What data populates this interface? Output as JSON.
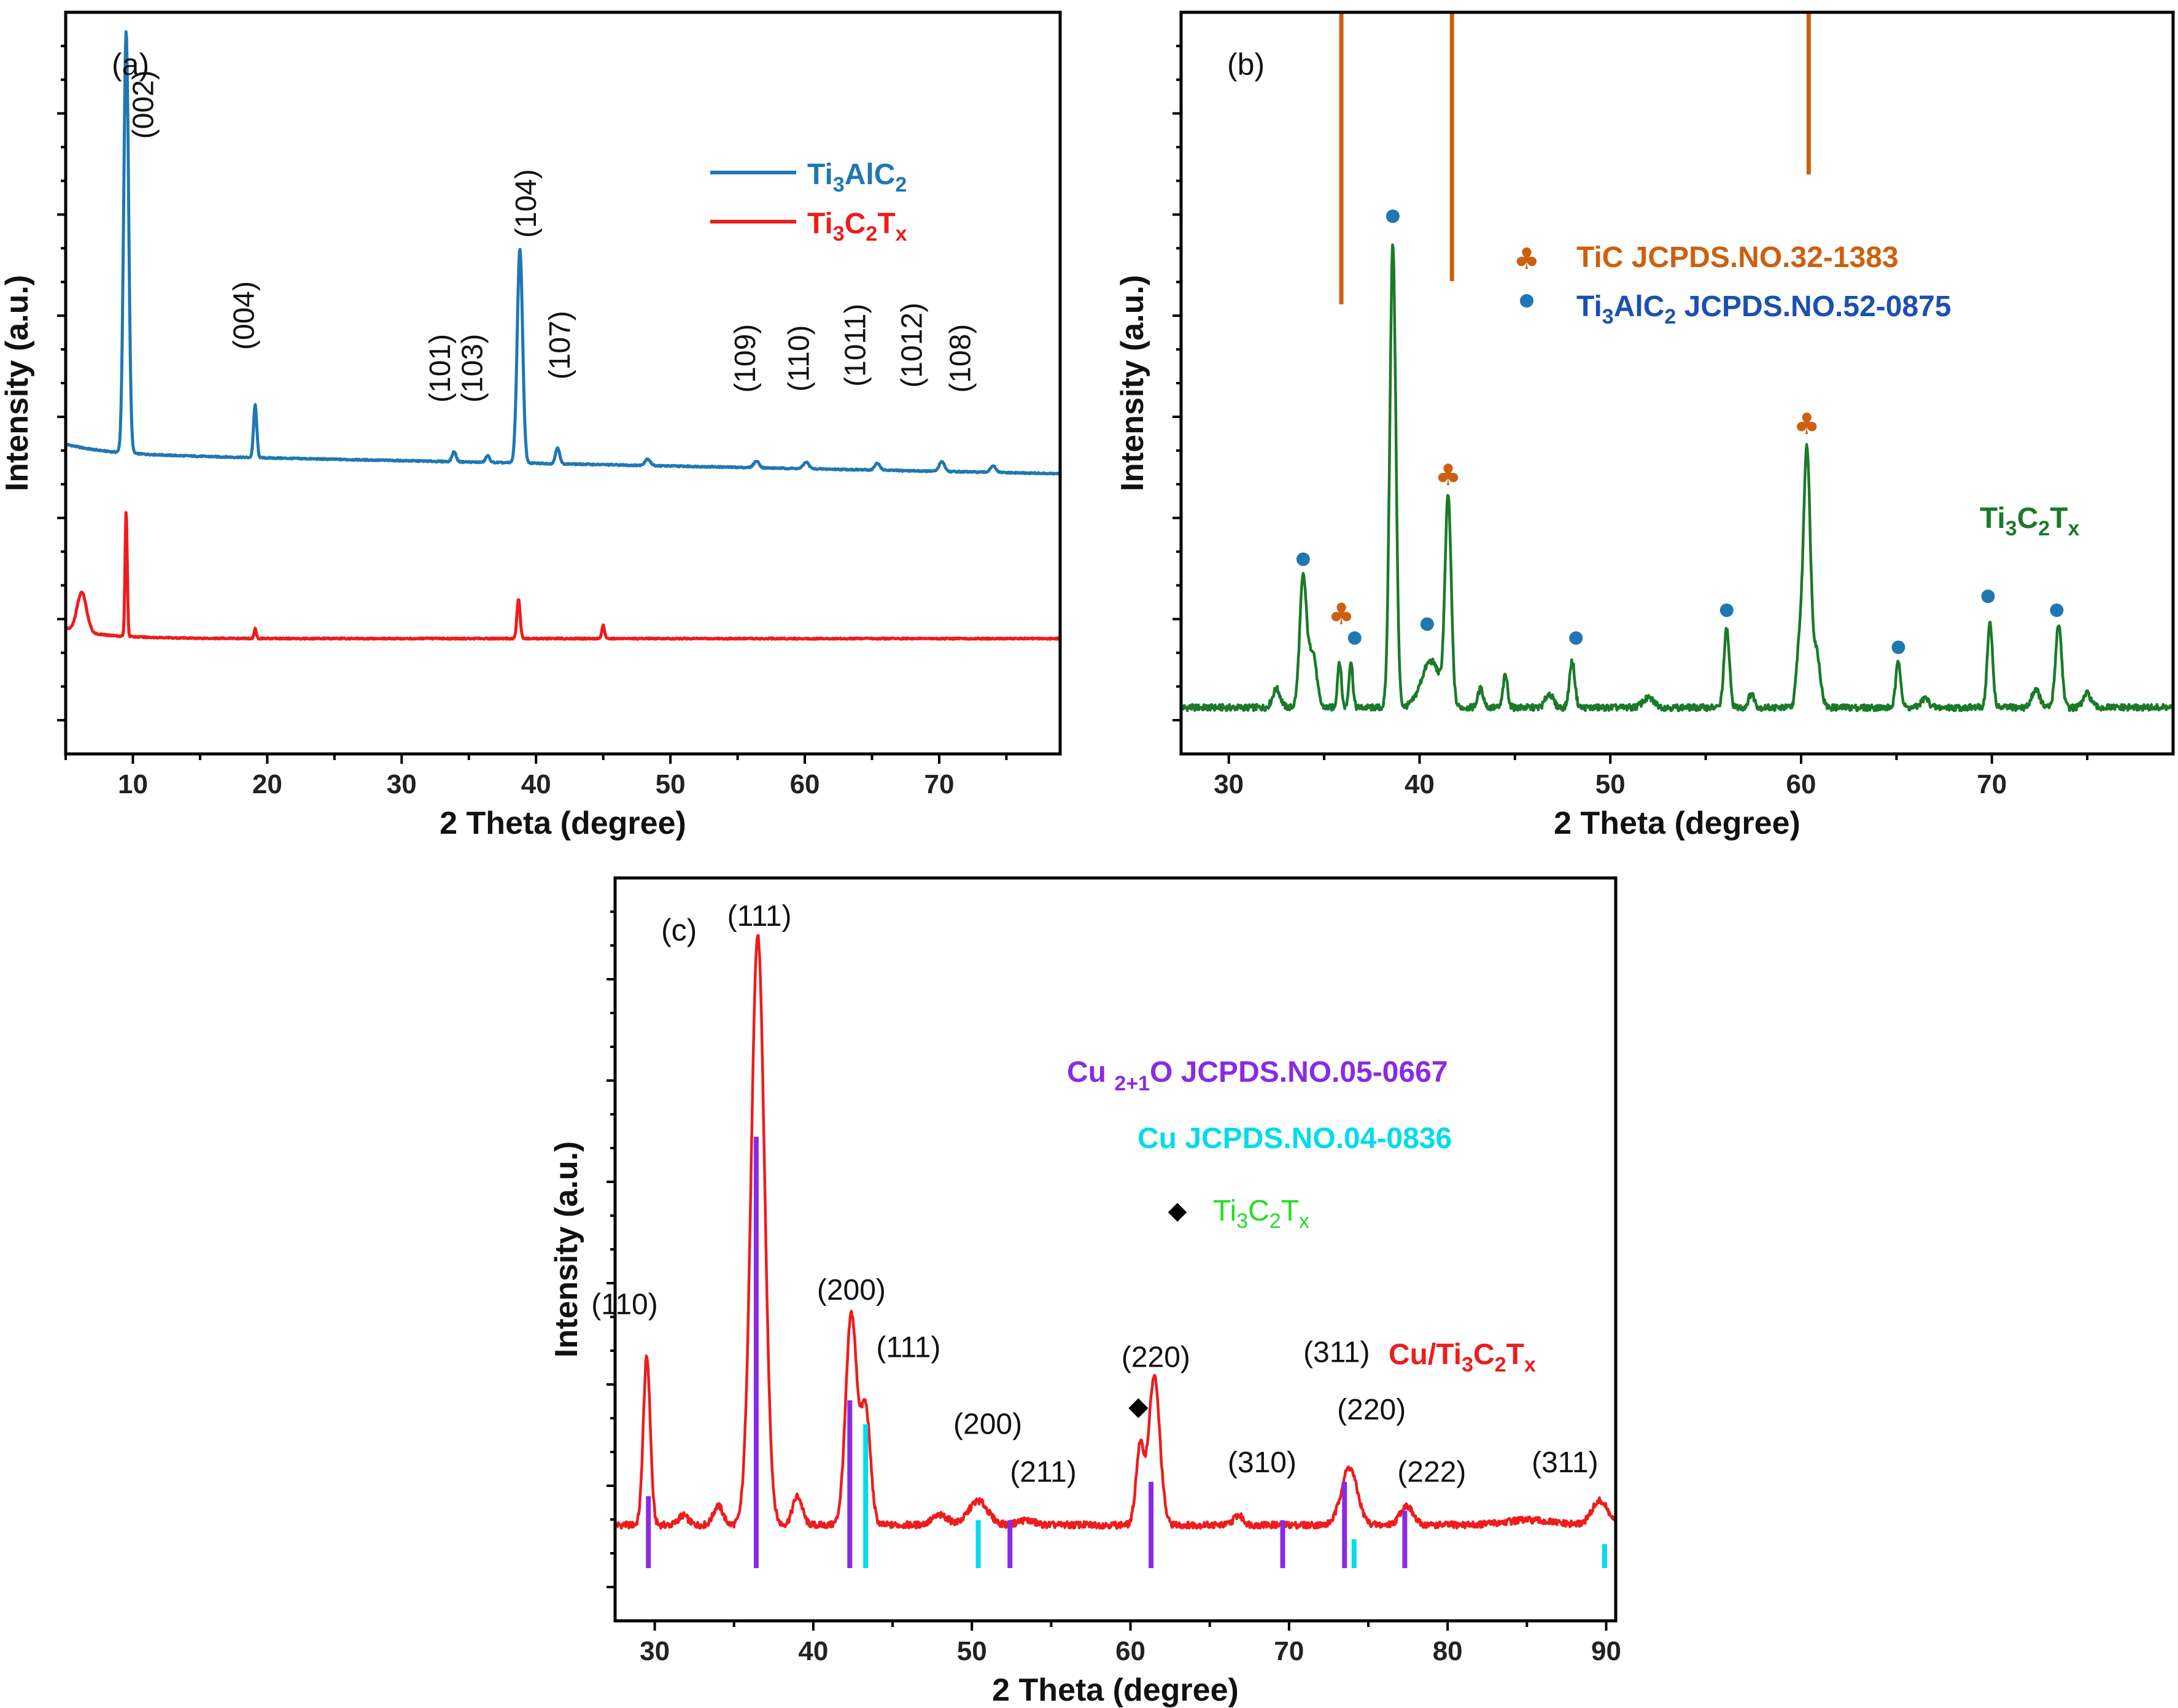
{
  "chart_data": [
    {
      "panel": "(a)",
      "type": "line",
      "xlabel": "2 Theta (degree)",
      "ylabel": "Intensity (a.u.)",
      "xlim": [
        5,
        79
      ],
      "xticks": [
        10,
        20,
        30,
        40,
        50,
        60,
        70
      ],
      "ylim": [
        -0.35,
        1.9
      ],
      "legend": {
        "placement": "top-right",
        "entries": [
          {
            "label": "Ti3AlC2",
            "base": "Ti",
            "sub1": "3",
            "mid": "AlC",
            "sub2": "2",
            "color": "#1f77b4"
          },
          {
            "label": "Ti3C2Tx",
            "base": "Ti",
            "sub1": "3",
            "mid": "C",
            "sub2": "2",
            "tail": "T",
            "sub3": "x",
            "color": "#ee1c1c"
          }
        ]
      },
      "series": [
        {
          "name": "Ti3AlC2",
          "color": "#1f77b4",
          "baseline_start": 0.56,
          "baseline_end": 0.5,
          "peaks": [
            [
              9.5,
              1.28,
              0.18
            ],
            [
              19.1,
              0.16,
              0.12
            ],
            [
              33.9,
              0.03,
              0.15
            ],
            [
              36.4,
              0.02,
              0.15
            ],
            [
              38.8,
              0.65,
              0.2
            ],
            [
              41.6,
              0.05,
              0.15
            ],
            [
              48.3,
              0.02,
              0.2
            ],
            [
              56.4,
              0.02,
              0.2
            ],
            [
              60.1,
              0.02,
              0.2
            ],
            [
              65.4,
              0.02,
              0.2
            ],
            [
              70.2,
              0.03,
              0.2
            ],
            [
              74.0,
              0.02,
              0.2
            ]
          ]
        },
        {
          "name": "Ti3C2Tx",
          "color": "#ee1c1c",
          "baseline_start": 0.0,
          "baseline_end": 0.0,
          "peaks": [
            [
              6.2,
              0.12,
              0.35
            ],
            [
              9.5,
              0.38,
              0.08
            ],
            [
              19.1,
              0.03,
              0.08
            ],
            [
              38.7,
              0.12,
              0.12
            ],
            [
              45.0,
              0.04,
              0.1
            ]
          ]
        }
      ],
      "annotations": [
        {
          "text": "(002)",
          "x": 11.5,
          "y": 1.62
        },
        {
          "text": "(004)",
          "x": 19.0,
          "y": 0.98
        },
        {
          "text": "(101)",
          "x": 33.6,
          "y": 0.82
        },
        {
          "text": "(103)",
          "x": 36.0,
          "y": 0.82
        },
        {
          "text": "(104)",
          "x": 40.0,
          "y": 1.32
        },
        {
          "text": "(107)",
          "x": 42.5,
          "y": 0.89
        },
        {
          "text": "(109)",
          "x": 56.3,
          "y": 0.85
        },
        {
          "text": "(110)",
          "x": 60.3,
          "y": 0.85
        },
        {
          "text": "(1011)",
          "x": 64.5,
          "y": 0.89
        },
        {
          "text": "(1012)",
          "x": 68.7,
          "y": 0.89
        },
        {
          "text": "(108)",
          "x": 72.3,
          "y": 0.85
        }
      ]
    },
    {
      "panel": "(b)",
      "type": "line",
      "xlabel": "2 Theta (degree)",
      "ylabel": "Intensity (a.u.)",
      "xlim": [
        27.5,
        79.5
      ],
      "xticks": [
        30,
        40,
        50,
        60,
        70
      ],
      "ylim": [
        -0.1,
        1.5
      ],
      "series_label": {
        "base": "Ti",
        "sub1": "3",
        "mid": "C",
        "sub2": "2",
        "tail": "T",
        "sub3": "x",
        "color": "#1a7a28"
      },
      "legend": {
        "placement": "upper-right",
        "entries": [
          {
            "symbol": "club",
            "label": "TiC JCPDS.NO.32-1383",
            "color": "#cc6010"
          },
          {
            "symbol": "dot",
            "label": "Ti3AlC2 JCPDS.NO.52-0875",
            "formula_base": "Ti",
            "formula_sub1": "3",
            "formula_mid": "AlC",
            "formula_sub2": "2",
            "ref": " JCPDS.NO.52-0875",
            "color": "#1a50b0",
            "dot_color": "#1f77b4"
          }
        ]
      },
      "series": [
        {
          "name": "Ti3C2Tx",
          "color": "#1a7a28",
          "baseline": 0.0,
          "peaks": [
            [
              32.5,
              0.04,
              0.2
            ],
            [
              33.9,
              0.28,
              0.18
            ],
            [
              34.4,
              0.12,
              0.2
            ],
            [
              35.8,
              0.1,
              0.1
            ],
            [
              36.4,
              0.1,
              0.1
            ],
            [
              38.6,
              1.0,
              0.16
            ],
            [
              40.6,
              0.1,
              0.5
            ],
            [
              41.5,
              0.44,
              0.16
            ],
            [
              43.2,
              0.04,
              0.15
            ],
            [
              44.5,
              0.07,
              0.12
            ],
            [
              46.8,
              0.03,
              0.2
            ],
            [
              48.0,
              0.1,
              0.14
            ],
            [
              52.0,
              0.02,
              0.3
            ],
            [
              56.1,
              0.17,
              0.14
            ],
            [
              57.4,
              0.03,
              0.15
            ],
            [
              59.9,
              0.12,
              0.15
            ],
            [
              60.3,
              0.56,
              0.18
            ],
            [
              60.8,
              0.12,
              0.2
            ],
            [
              65.1,
              0.1,
              0.13
            ],
            [
              66.5,
              0.02,
              0.2
            ],
            [
              69.9,
              0.18,
              0.14
            ],
            [
              72.3,
              0.04,
              0.2
            ],
            [
              73.5,
              0.18,
              0.16
            ],
            [
              75.0,
              0.03,
              0.2
            ]
          ]
        }
      ],
      "reference_lines": {
        "color": "#cc6010",
        "lines": [
          [
            35.9,
            0.87,
            1.5
          ],
          [
            41.7,
            0.92,
            1.5
          ],
          [
            60.4,
            1.15,
            1.5
          ]
        ]
      },
      "club_markers": [
        [
          35.9,
          0.18
        ],
        [
          41.5,
          0.48
        ],
        [
          60.3,
          0.59
        ]
      ],
      "dot_markers": [
        [
          33.9,
          0.32
        ],
        [
          36.6,
          0.15
        ],
        [
          38.6,
          1.06
        ],
        [
          40.4,
          0.18
        ],
        [
          48.2,
          0.15
        ],
        [
          56.1,
          0.21
        ],
        [
          65.1,
          0.13
        ],
        [
          69.8,
          0.24
        ],
        [
          73.4,
          0.21
        ]
      ]
    },
    {
      "panel": "(c)",
      "type": "line",
      "xlabel": "2 Theta (degree)",
      "ylabel": "Intensity (a.u.)",
      "xlim": [
        27.5,
        90.6
      ],
      "xticks": [
        30,
        40,
        50,
        60,
        70,
        80,
        90
      ],
      "ylim": [
        -0.09,
        1.46
      ],
      "series_label": {
        "base": "Cu/Ti",
        "sub1": "3",
        "mid": "C",
        "sub2": "2",
        "tail": "T",
        "sub3": "x",
        "color": "#ee1c1c"
      },
      "legend": {
        "placement": "upper-right",
        "entries": [
          {
            "label": "Cu 2+1O JCPDS.NO.05-0667",
            "base": "Cu ",
            "sub": "2+1",
            "tail": "O JCPDS.NO.05-0667",
            "color": "#8a2be2"
          },
          {
            "label": "Cu  JCPDS.NO.04-0836",
            "color": "#00dcea"
          },
          {
            "symbol": "diamond",
            "label": "Ti3C2Tx",
            "base": "Ti",
            "sub1": "3",
            "mid": "C",
            "sub2": "2",
            "tail": "T",
            "sub3": "x",
            "color": "#22dd22"
          }
        ]
      },
      "series": [
        {
          "name": "Cu/Ti3C2Tx",
          "color": "#ee1c1c",
          "baseline": 0.11,
          "peaks": [
            [
              29.5,
              0.35,
              0.22
            ],
            [
              31.8,
              0.02,
              0.3
            ],
            [
              34.0,
              0.04,
              0.3
            ],
            [
              36.5,
              1.23,
              0.42
            ],
            [
              39.0,
              0.06,
              0.3
            ],
            [
              42.4,
              0.44,
              0.35
            ],
            [
              43.3,
              0.24,
              0.3
            ],
            [
              48.0,
              0.02,
              0.5
            ],
            [
              50.4,
              0.05,
              0.6
            ],
            [
              53.4,
              0.01,
              0.5
            ],
            [
              60.6,
              0.16,
              0.25
            ],
            [
              61.5,
              0.31,
              0.35
            ],
            [
              66.8,
              0.02,
              0.3
            ],
            [
              73.8,
              0.12,
              0.5
            ],
            [
              77.4,
              0.04,
              0.4
            ],
            [
              85.0,
              0.01,
              1.5
            ],
            [
              89.6,
              0.05,
              0.5
            ]
          ]
        }
      ],
      "cu2o_sticks": [
        [
          29.6,
          0.02,
          0.15
        ],
        [
          36.4,
          0.02,
          0.9
        ],
        [
          42.3,
          0.02,
          0.35
        ],
        [
          52.4,
          0.02,
          0.1
        ],
        [
          61.3,
          0.02,
          0.18
        ],
        [
          69.6,
          0.02,
          0.1
        ],
        [
          73.5,
          0.02,
          0.18
        ],
        [
          77.3,
          0.02,
          0.12
        ]
      ],
      "cu_sticks": [
        [
          43.3,
          0.02,
          0.3
        ],
        [
          50.4,
          0.02,
          0.1
        ],
        [
          74.1,
          0.02,
          0.06
        ],
        [
          89.9,
          0.02,
          0.05
        ]
      ],
      "cu2o_color": "#8a2be2",
      "cu_color": "#00dcea",
      "diamond_marker": [
        60.5,
        0.34
      ],
      "annotations": [
        {
          "text": "(110)",
          "x": 28.1,
          "y": 0.55,
          "color": "#8a2be2"
        },
        {
          "text": "(111)",
          "x": 36.6,
          "y": 1.36,
          "color": "#8a2be2"
        },
        {
          "text": "(200)",
          "x": 42.4,
          "y": 0.58,
          "color": "#8a2be2"
        },
        {
          "text": "(111)",
          "x": 46.0,
          "y": 0.46,
          "color": "#00dcea"
        },
        {
          "text": "(200)",
          "x": 51.0,
          "y": 0.3,
          "color": "#00dcea"
        },
        {
          "text": "(211)",
          "x": 54.5,
          "y": 0.2,
          "color": "#8a2be2"
        },
        {
          "text": "(220)",
          "x": 61.6,
          "y": 0.44,
          "color": "#8a2be2"
        },
        {
          "text": "(310)",
          "x": 68.3,
          "y": 0.22,
          "color": "#8a2be2"
        },
        {
          "text": "(311)",
          "x": 73.0,
          "y": 0.45,
          "color": "#8a2be2"
        },
        {
          "text": "(220)",
          "x": 75.2,
          "y": 0.33,
          "color": "#00dcea"
        },
        {
          "text": "(222)",
          "x": 79.0,
          "y": 0.2,
          "color": "#8a2be2"
        },
        {
          "text": "(311)",
          "x": 87.4,
          "y": 0.22,
          "color": "#00dcea"
        }
      ]
    }
  ]
}
